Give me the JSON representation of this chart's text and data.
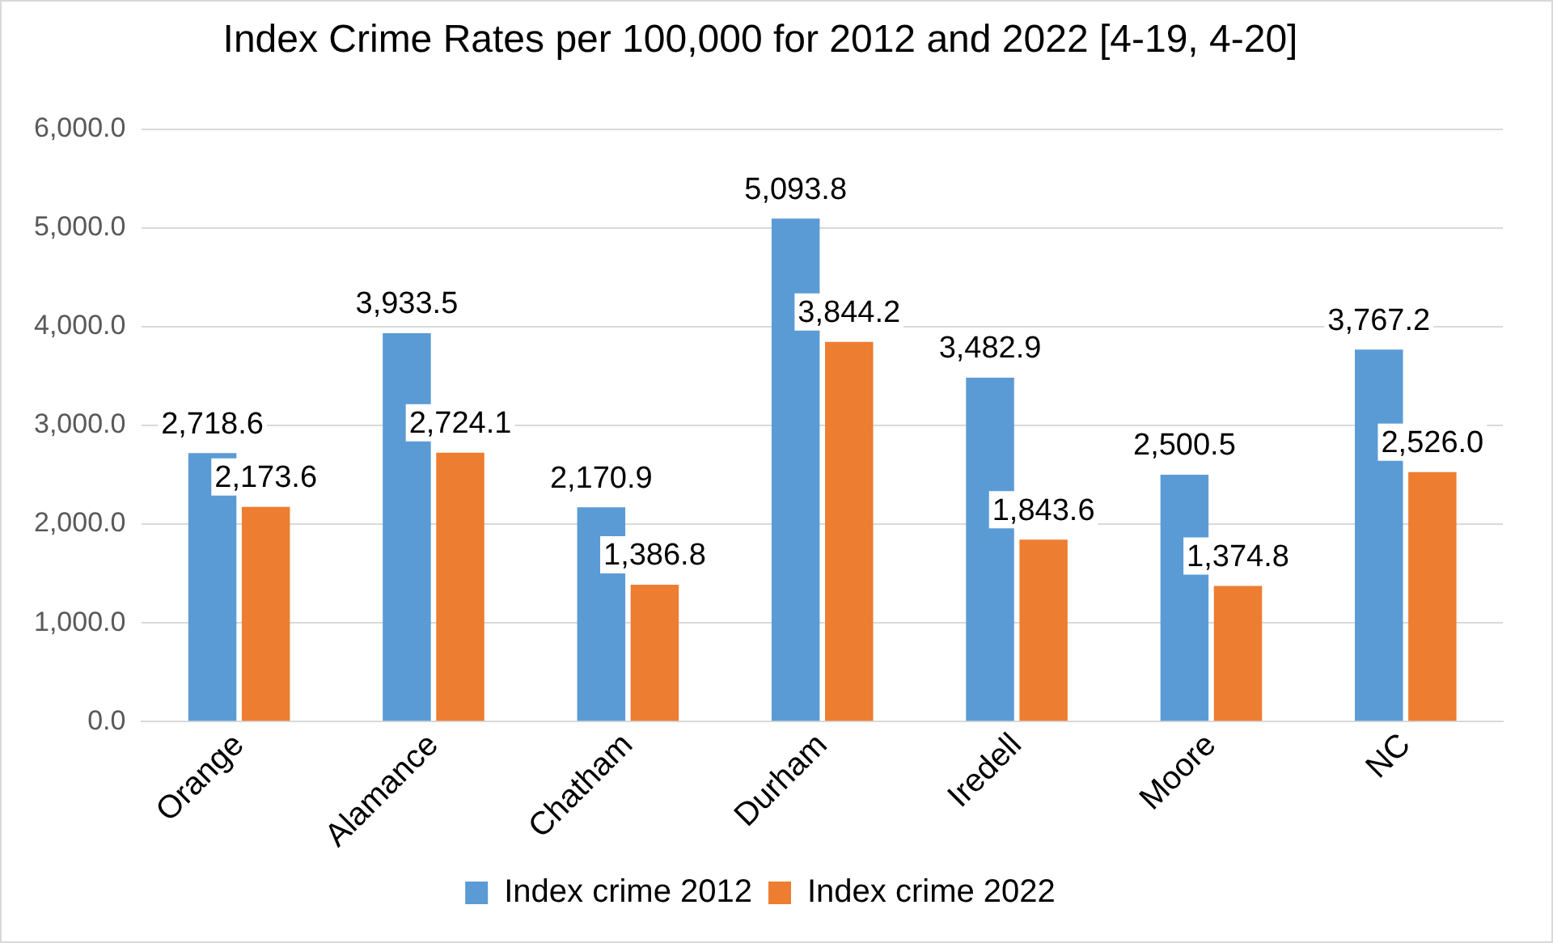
{
  "chart_data": {
    "type": "bar",
    "title": "Index Crime Rates per 100,000 for 2012 and 2022 [4-19, 4-20]",
    "categories": [
      "Orange",
      "Alamance",
      "Chatham",
      "Durham",
      "Iredell",
      "Moore",
      "NC"
    ],
    "series": [
      {
        "name": "Index crime 2012",
        "color": "#5b9bd5",
        "values": [
          2718.6,
          3933.5,
          2170.9,
          5093.8,
          3482.9,
          2500.5,
          3767.2
        ],
        "value_labels": [
          "2,718.6",
          "3,933.5",
          "2,170.9",
          "5,093.8",
          "3,482.9",
          "2,500.5",
          "3,767.2"
        ]
      },
      {
        "name": "Index crime 2022",
        "color": "#ed7d31",
        "values": [
          2173.6,
          2724.1,
          1386.8,
          3844.2,
          1843.6,
          1374.8,
          2526.0
        ],
        "value_labels": [
          "2,173.6",
          "2,724.1",
          "1,386.8",
          "3,844.2",
          "1,843.6",
          "1,374.8",
          "2,526.0"
        ]
      }
    ],
    "ylim": [
      0,
      6000
    ],
    "yticks": [
      {
        "value": 0,
        "label": "0.0"
      },
      {
        "value": 1000,
        "label": "1,000.0"
      },
      {
        "value": 2000,
        "label": "2,000.0"
      },
      {
        "value": 3000,
        "label": "3,000.0"
      },
      {
        "value": 4000,
        "label": "4,000.0"
      },
      {
        "value": 5000,
        "label": "5,000.0"
      },
      {
        "value": 6000,
        "label": "6,000.0"
      }
    ],
    "grid": "y",
    "legend": "bottom"
  }
}
